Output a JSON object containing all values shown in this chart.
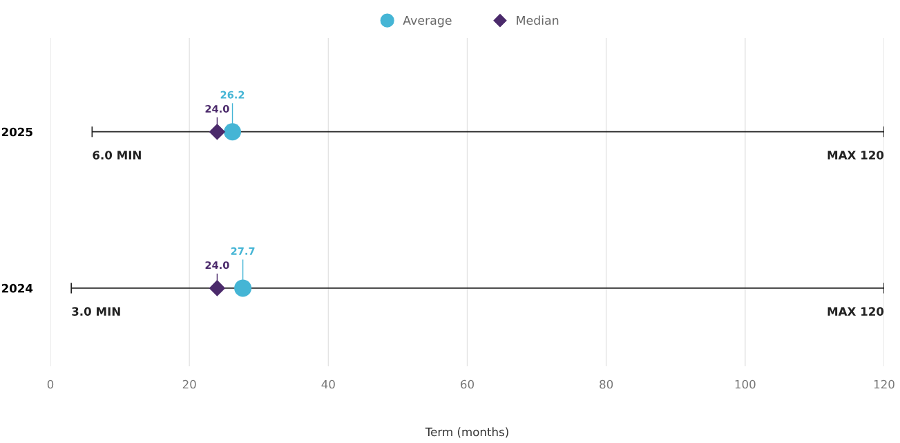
{
  "chart_data": {
    "type": "scatter",
    "orientation": "horizontal",
    "xlabel": "Term (months)",
    "categories": [
      "2025",
      "2024"
    ],
    "xlim": [
      0,
      120
    ],
    "xticks": [
      0,
      20,
      40,
      60,
      80,
      100,
      120
    ],
    "grid": "x",
    "legend": "top",
    "series": [
      {
        "type": "bar",
        "color": "#222222",
        "base": [
          6.0,
          3.0
        ],
        "values": [
          114.0,
          117.0
        ]
      },
      {
        "name": "Average",
        "marker": "circle",
        "color": "#45b5d5",
        "values": [
          26.2,
          27.7
        ],
        "value_labels": [
          "26.2",
          "27.7"
        ]
      },
      {
        "name": "Median",
        "marker": "diamond",
        "color": "#4b2a6b",
        "values": [
          24.0,
          24.0
        ],
        "value_labels": [
          "24.0",
          "24.0"
        ]
      }
    ],
    "annotations": [
      {
        "text": "6.0 MIN",
        "x": 6.0,
        "y": "2025"
      },
      {
        "text": "MAX 120",
        "x": 120,
        "y": "2025"
      },
      {
        "text": "3.0 MIN",
        "x": 3.0,
        "y": "2024"
      },
      {
        "text": "MAX 120",
        "x": 120,
        "y": "2024"
      }
    ]
  }
}
